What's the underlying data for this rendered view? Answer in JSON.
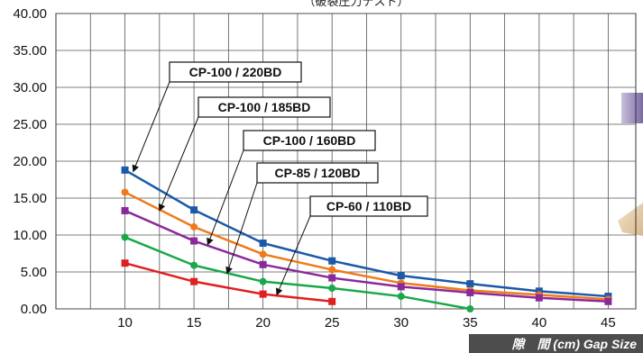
{
  "chart_data": {
    "type": "line",
    "title": "（破裂圧力テスト）",
    "xlabel": "隙　間 (cm) Gap Size",
    "ylabel": "",
    "xlim": [
      5,
      47
    ],
    "ylim": [
      0,
      40
    ],
    "x_ticks": [
      10,
      15,
      20,
      25,
      30,
      35,
      40,
      45
    ],
    "y_ticks": [
      "0.00",
      "5.00",
      "10.00",
      "15.00",
      "20.00",
      "25.00",
      "30.00",
      "35.00",
      "40.00"
    ],
    "grid": true,
    "series": [
      {
        "name": "CP-100 / 220BD",
        "color": "#1a5aa8",
        "marker": "square",
        "x": [
          10,
          15,
          20,
          25,
          30,
          35,
          40,
          45
        ],
        "y": [
          18.8,
          13.4,
          8.9,
          6.5,
          4.5,
          3.4,
          2.4,
          1.7
        ]
      },
      {
        "name": "CP-100 / 185BD",
        "color": "#f07a1a",
        "marker": "circle",
        "x": [
          10,
          15,
          20,
          25,
          30,
          35,
          40,
          45
        ],
        "y": [
          15.8,
          11.1,
          7.4,
          5.3,
          3.5,
          2.5,
          1.9,
          1.3
        ]
      },
      {
        "name": "CP-100 / 160BD",
        "color": "#8a2a9a",
        "marker": "square",
        "x": [
          10,
          15,
          20,
          25,
          30,
          35,
          40,
          45
        ],
        "y": [
          13.3,
          9.2,
          6.0,
          4.2,
          3.0,
          2.2,
          1.5,
          1.0
        ]
      },
      {
        "name": "CP-85 / 120BD",
        "color": "#1aa84a",
        "marker": "circle",
        "x": [
          10,
          15,
          20,
          25,
          30,
          35
        ],
        "y": [
          9.7,
          5.9,
          3.7,
          2.8,
          1.7,
          0.0
        ]
      },
      {
        "name": "CP-60 / 110BD",
        "color": "#e02020",
        "marker": "square",
        "x": [
          10,
          15,
          20,
          25
        ],
        "y": [
          6.2,
          3.7,
          2.0,
          1.0
        ]
      }
    ],
    "callouts": [
      {
        "label": "CP-100 / 220BD",
        "target_x": 10.6,
        "target_y": 18.6
      },
      {
        "label": "CP-100 / 185BD",
        "target_x": 12.5,
        "target_y": 13.3
      },
      {
        "label": "CP-100 / 160BD",
        "target_x": 16.0,
        "target_y": 8.7
      },
      {
        "label": "CP-85 / 120BD",
        "target_x": 17.4,
        "target_y": 4.8
      },
      {
        "label": "CP-60 / 110BD",
        "target_x": 21.0,
        "target_y": 1.9
      }
    ]
  }
}
